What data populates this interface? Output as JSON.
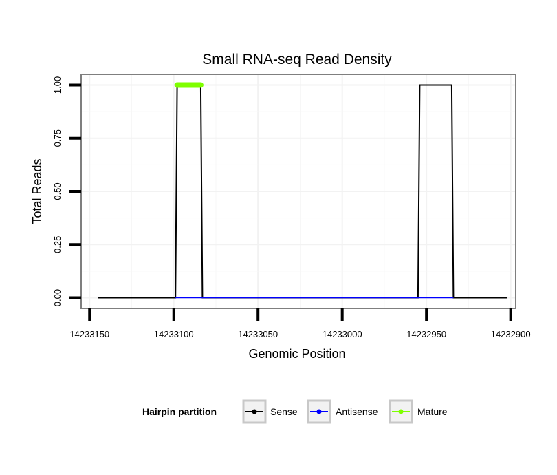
{
  "chart_data": {
    "type": "line",
    "title": "Small RNA-seq Read Density",
    "xlabel": "Genomic Position",
    "ylabel": "Total Reads",
    "x_reversed": true,
    "xlim": [
      14233155,
      14232897
    ],
    "ylim": [
      -0.05,
      1.05
    ],
    "x_ticks": [
      14233150,
      14233100,
      14233050,
      14233000,
      14232950,
      14232900
    ],
    "x_tick_labels": [
      "14233150",
      "14233100",
      "14233050",
      "14233000",
      "14232950",
      "14232900"
    ],
    "y_ticks": [
      0,
      0.25,
      0.5,
      0.75,
      1.0
    ],
    "y_tick_labels": [
      "0.00",
      "0.25",
      "0.50",
      "0.75",
      "1.00"
    ],
    "grid": true,
    "series": [
      {
        "name": "Sense",
        "color": "#000000",
        "points": [
          [
            14233145,
            0
          ],
          [
            14233099,
            0
          ],
          [
            14233098,
            1
          ],
          [
            14233084,
            1
          ],
          [
            14233083,
            0
          ],
          [
            14232955,
            0
          ],
          [
            14232954,
            1
          ],
          [
            14232935,
            1
          ],
          [
            14232934,
            0
          ],
          [
            14232902,
            0
          ]
        ]
      },
      {
        "name": "Antisense",
        "color": "#0000ff",
        "points": [
          [
            14233099,
            0
          ],
          [
            14233083,
            0
          ],
          [
            14232955,
            0
          ],
          [
            14232934,
            0
          ]
        ]
      },
      {
        "name": "Mature",
        "color": "#7fff00",
        "points": [
          [
            14233098,
            1
          ],
          [
            14233084,
            1
          ]
        ]
      }
    ],
    "legend": {
      "title": "Hairpin partition",
      "position": "bottom",
      "items": [
        "Sense",
        "Antisense",
        "Mature"
      ]
    }
  }
}
